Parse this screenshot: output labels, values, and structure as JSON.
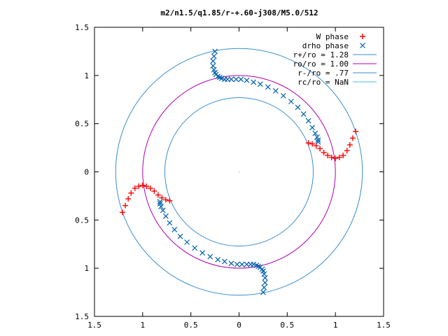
{
  "chart_data": {
    "type": "scatter",
    "title": "m2/n1.5/q1.85/r-+.60-j308/M5.0/512",
    "xlabel": "",
    "ylabel": "",
    "xlim": [
      -1.5,
      1.5
    ],
    "ylim": [
      -1.5,
      1.5
    ],
    "x_ticks": [
      -1.5,
      -1,
      -0.5,
      0,
      0.5,
      1,
      1.5
    ],
    "y_ticks": [
      -1.5,
      -1,
      -0.5,
      0,
      0.5,
      1,
      1.5
    ],
    "x_tick_labels": [
      "1.5",
      "1",
      "0.5",
      "0",
      "0.5",
      "1",
      "1.5"
    ],
    "y_tick_labels": [
      "1.5",
      "1",
      "0.5",
      "0",
      "0.5",
      "1",
      "1.5"
    ],
    "grid": false,
    "legend_position": "top-right",
    "series": [
      {
        "name": "W phase",
        "marker": "+",
        "color": "#ff0000",
        "arms": [
          {
            "x": [
              0.72,
              0.76,
              0.8,
              0.84,
              0.88,
              0.92,
              0.96,
              1.0,
              1.04,
              1.08,
              1.12,
              1.15,
              1.18,
              1.21
            ],
            "y": [
              0.3,
              0.29,
              0.27,
              0.24,
              0.2,
              0.17,
              0.15,
              0.14,
              0.15,
              0.17,
              0.22,
              0.28,
              0.35,
              0.42
            ]
          },
          {
            "x": [
              -0.72,
              -0.76,
              -0.8,
              -0.84,
              -0.88,
              -0.92,
              -0.96,
              -1.0,
              -1.04,
              -1.08,
              -1.12,
              -1.15,
              -1.18,
              -1.21
            ],
            "y": [
              -0.3,
              -0.29,
              -0.27,
              -0.24,
              -0.2,
              -0.17,
              -0.15,
              -0.14,
              -0.15,
              -0.17,
              -0.22,
              -0.28,
              -0.35,
              -0.42
            ]
          }
        ]
      },
      {
        "name": "drho phase",
        "marker": "x",
        "color": "#0060ad",
        "arms": [
          {
            "x": [
              -0.25,
              -0.26,
              -0.27,
              -0.27,
              -0.26,
              -0.25,
              -0.24,
              -0.22,
              -0.2,
              -0.18,
              -0.15,
              -0.12,
              -0.08,
              -0.03,
              0.02,
              0.08,
              0.15,
              0.22,
              0.3,
              0.38,
              0.46,
              0.54,
              0.61,
              0.67,
              0.72,
              0.76,
              0.79,
              0.81,
              0.82,
              0.82
            ],
            "y": [
              1.25,
              1.2,
              1.15,
              1.1,
              1.06,
              1.03,
              1.01,
              0.99,
              0.98,
              0.97,
              0.96,
              0.96,
              0.96,
              0.96,
              0.96,
              0.95,
              0.93,
              0.91,
              0.88,
              0.84,
              0.79,
              0.73,
              0.67,
              0.6,
              0.53,
              0.46,
              0.4,
              0.36,
              0.33,
              0.31
            ]
          },
          {
            "x": [
              0.25,
              0.26,
              0.27,
              0.27,
              0.26,
              0.25,
              0.24,
              0.22,
              0.2,
              0.18,
              0.15,
              0.12,
              0.08,
              0.03,
              -0.02,
              -0.08,
              -0.15,
              -0.22,
              -0.3,
              -0.38,
              -0.46,
              -0.54,
              -0.61,
              -0.67,
              -0.72,
              -0.76,
              -0.79,
              -0.81,
              -0.82,
              -0.82
            ],
            "y": [
              -1.25,
              -1.2,
              -1.15,
              -1.1,
              -1.06,
              -1.03,
              -1.01,
              -0.99,
              -0.98,
              -0.97,
              -0.96,
              -0.96,
              -0.96,
              -0.96,
              -0.96,
              -0.95,
              -0.93,
              -0.91,
              -0.88,
              -0.84,
              -0.79,
              -0.73,
              -0.67,
              -0.6,
              -0.53,
              -0.46,
              -0.4,
              -0.36,
              -0.33,
              -0.31
            ]
          }
        ]
      },
      {
        "name": "r+/ro = 1.28",
        "kind": "circle",
        "radius": 1.28,
        "color": "#3a8fcf"
      },
      {
        "name": "ro/ro = 1.00",
        "kind": "circle",
        "radius": 1.0,
        "color": "#b000b0"
      },
      {
        "name": "r-/ro = .77",
        "kind": "circle",
        "radius": 0.77,
        "color": "#3a8fcf"
      },
      {
        "name": "rc/ro = NaN",
        "kind": "circle",
        "radius": null,
        "color": "#40c0e0"
      }
    ]
  }
}
